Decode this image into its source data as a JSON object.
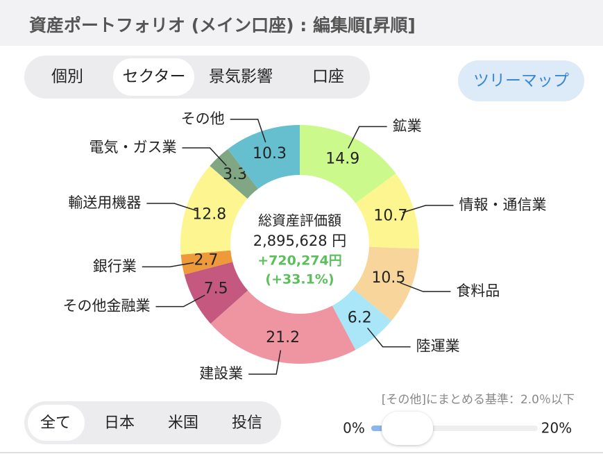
{
  "header": {
    "title": "資産ポートフォリオ (メイン口座) : 編集順[昇順]"
  },
  "tabs": [
    "個別",
    "セクター",
    "景気影響",
    "口座"
  ],
  "view_button": "ツリーマップ",
  "chart_data": {
    "type": "pie",
    "donut": true,
    "categories": [
      "鉱業",
      "情報・通信業",
      "食料品",
      "陸運業",
      "建設業",
      "その他金融業",
      "銀行業",
      "輸送用機器",
      "電気・ガス業",
      "その他"
    ],
    "values": [
      14.9,
      10.7,
      10.5,
      6.2,
      21.2,
      7.5,
      2.7,
      12.8,
      3.3,
      10.3
    ],
    "colors": [
      "#ccf98b",
      "#fdf690",
      "#f8d59b",
      "#a9e6f8",
      "#ef95a1",
      "#c4587f",
      "#ee9a3b",
      "#fdf690",
      "#80a683",
      "#65bfcf"
    ],
    "center": {
      "label": "総資産評価額",
      "total": "2,895,628 円",
      "gain": "+720,274円",
      "gain_percent": "(+33.1%)"
    }
  },
  "filter_tabs": [
    "全て",
    "日本",
    "米国",
    "投信"
  ],
  "slider": {
    "caption": "[その他]にまとめる基準：2.0％以下",
    "min_label": "0%",
    "max_label": "20%"
  }
}
